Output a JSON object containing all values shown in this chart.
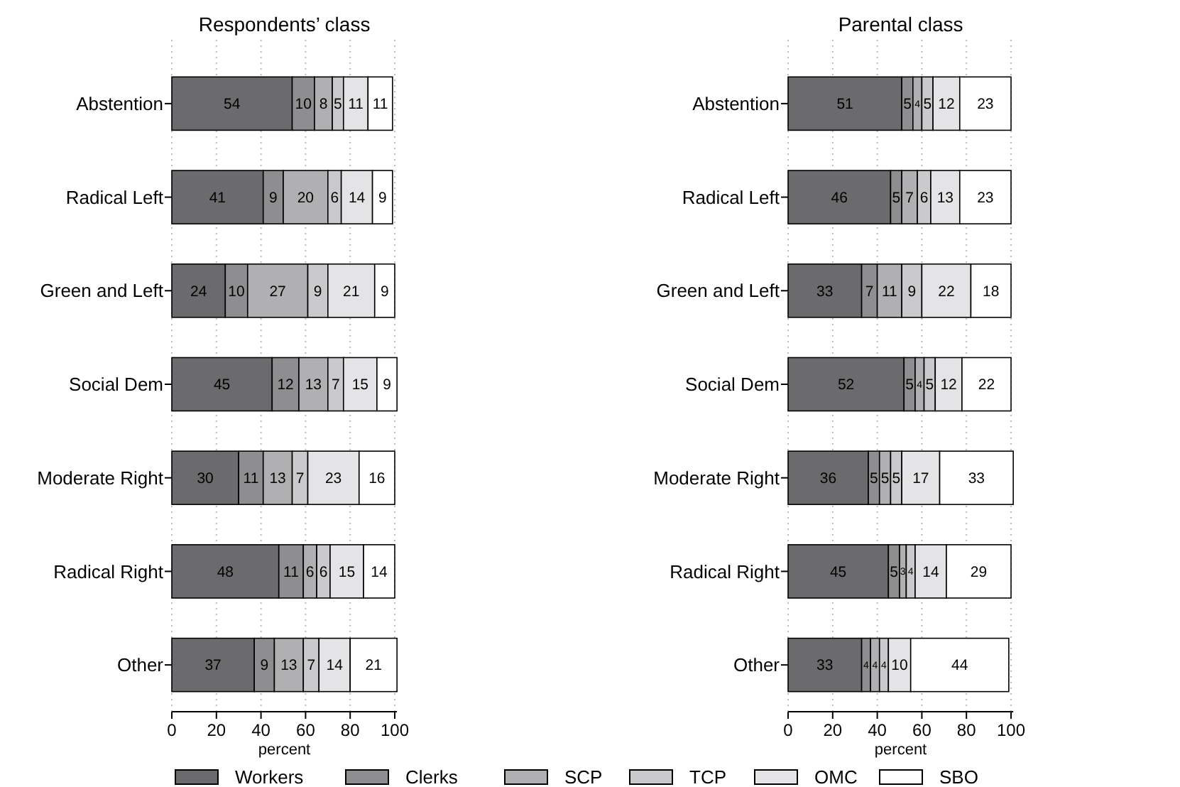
{
  "chart_data": [
    {
      "type": "bar",
      "orientation": "horizontal",
      "stacked": true,
      "title": "Respondents’ class",
      "xlabel": "percent",
      "categories": [
        "Abstention",
        "Radical Left",
        "Green and Left",
        "Social Dem",
        "Moderate Right",
        "Radical Right",
        "Other"
      ],
      "xlim": [
        0,
        101
      ],
      "xticks": [
        0,
        20,
        40,
        60,
        80,
        100
      ],
      "grid": "x",
      "data_labels": true,
      "legend": "bottom",
      "series": [
        {
          "name": "Workers",
          "color": "#6b6b6d",
          "values": [
            54,
            41,
            24,
            45,
            30,
            48,
            37
          ]
        },
        {
          "name": "Clerks",
          "color": "#8e8e90",
          "values": [
            10,
            9,
            10,
            12,
            11,
            11,
            9
          ]
        },
        {
          "name": "SCP",
          "color": "#b0b0b2",
          "values": [
            8,
            20,
            27,
            13,
            13,
            6,
            13
          ]
        },
        {
          "name": "TCP",
          "color": "#cacacc",
          "values": [
            5,
            6,
            9,
            7,
            7,
            6,
            7
          ]
        },
        {
          "name": "OMC",
          "color": "#e4e4e6",
          "values": [
            11,
            14,
            21,
            15,
            23,
            15,
            14
          ]
        },
        {
          "name": "SBO",
          "color": "#ffffff",
          "values": [
            11,
            9,
            9,
            9,
            16,
            14,
            21
          ]
        }
      ]
    },
    {
      "type": "bar",
      "orientation": "horizontal",
      "stacked": true,
      "title": "Parental class",
      "xlabel": "percent",
      "categories": [
        "Abstention",
        "Radical Left",
        "Green and Left",
        "Social Dem",
        "Moderate Right",
        "Radical Right",
        "Other"
      ],
      "xlim": [
        0,
        101
      ],
      "xticks": [
        0,
        20,
        40,
        60,
        80,
        100
      ],
      "grid": "x",
      "data_labels": true,
      "series": [
        {
          "color": "#6b6b6d",
          "values": [
            51,
            46,
            33,
            52,
            36,
            45,
            33
          ]
        },
        {
          "color": "#8e8e90",
          "values": [
            5,
            5,
            7,
            5,
            5,
            5,
            4
          ]
        },
        {
          "color": "#b0b0b2",
          "values": [
            4,
            7,
            11,
            4,
            5,
            3,
            4
          ]
        },
        {
          "color": "#cacacc",
          "values": [
            5,
            6,
            9,
            5,
            5,
            4,
            4
          ]
        },
        {
          "color": "#e4e4e6",
          "values": [
            12,
            13,
            22,
            12,
            17,
            14,
            10
          ]
        },
        {
          "color": "#ffffff",
          "values": [
            23,
            23,
            18,
            22,
            33,
            29,
            44
          ]
        }
      ]
    }
  ]
}
